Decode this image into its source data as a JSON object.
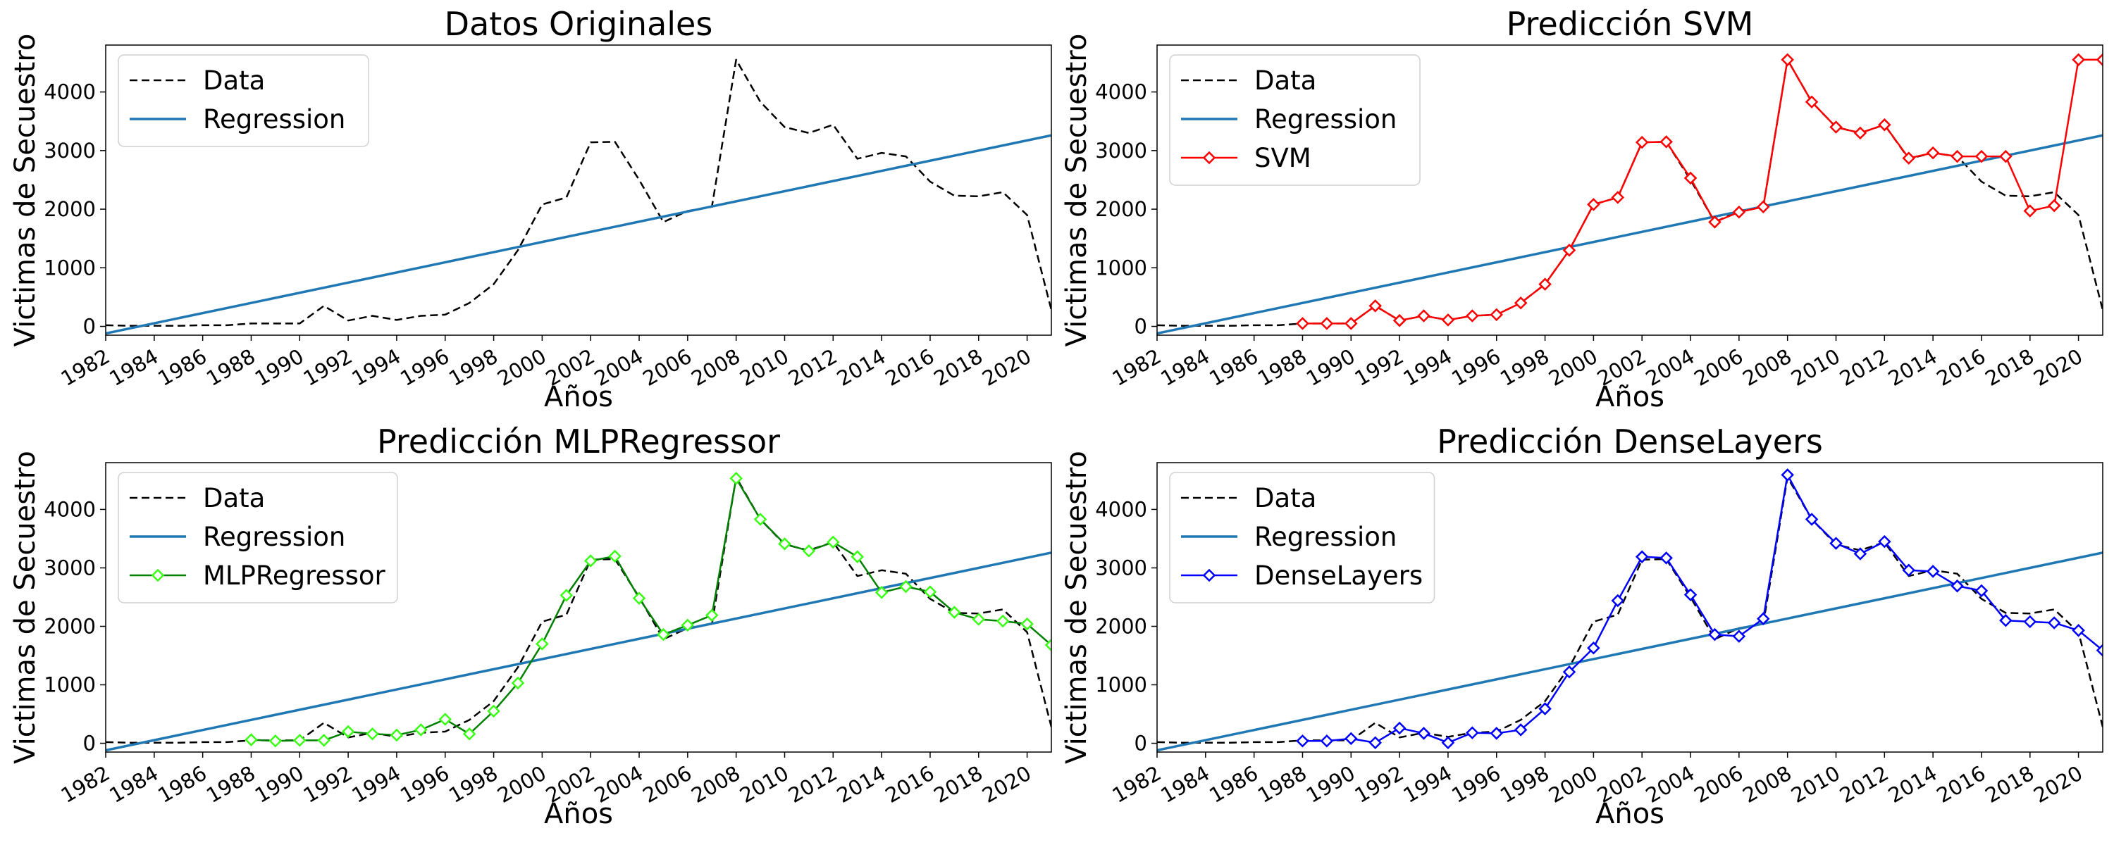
{
  "chart_data": [
    {
      "type": "line",
      "title": "Datos Originales",
      "xlabel": "Años",
      "ylabel": "Victimas de Secuestro",
      "xlim": [
        1982,
        2021
      ],
      "ylim": [
        -150,
        4800
      ],
      "xticks": [
        1982,
        1984,
        1986,
        1988,
        1990,
        1992,
        1994,
        1996,
        1998,
        2000,
        2002,
        2004,
        2006,
        2008,
        2010,
        2012,
        2014,
        2016,
        2018,
        2020
      ],
      "yticks": [
        0,
        1000,
        2000,
        3000,
        4000
      ],
      "legend_position": "top-left",
      "legend": [
        "Data",
        "Regression"
      ],
      "series": [
        {
          "name": "Data",
          "style": "dashed",
          "color": "#000000",
          "x": [
            1982,
            1983,
            1984,
            1985,
            1986,
            1987,
            1988,
            1989,
            1990,
            1991,
            1992,
            1993,
            1994,
            1995,
            1996,
            1997,
            1998,
            1999,
            2000,
            2001,
            2002,
            2003,
            2004,
            2005,
            2006,
            2007,
            2008,
            2009,
            2010,
            2011,
            2012,
            2013,
            2014,
            2015,
            2016,
            2017,
            2018,
            2019,
            2020,
            2021
          ],
          "y": [
            20,
            10,
            10,
            10,
            20,
            20,
            50,
            50,
            50,
            350,
            100,
            180,
            110,
            180,
            200,
            400,
            720,
            1300,
            2080,
            2200,
            3140,
            3150,
            2500,
            1780,
            1970,
            2040,
            4550,
            3830,
            3400,
            3300,
            3440,
            2860,
            2960,
            2900,
            2470,
            2230,
            2220,
            2290,
            1900,
            280
          ]
        },
        {
          "name": "Regression",
          "style": "solid",
          "color": "#1f77b4",
          "x": [
            1982,
            2021
          ],
          "y": [
            -120,
            3260
          ]
        }
      ]
    },
    {
      "type": "line",
      "title": "Predicción SVM",
      "xlabel": "Años",
      "ylabel": "Victimas de Secuestro",
      "xlim": [
        1982,
        2021
      ],
      "ylim": [
        -150,
        4800
      ],
      "xticks": [
        1982,
        1984,
        1986,
        1988,
        1990,
        1992,
        1994,
        1996,
        1998,
        2000,
        2002,
        2004,
        2006,
        2008,
        2010,
        2012,
        2014,
        2016,
        2018,
        2020
      ],
      "yticks": [
        0,
        1000,
        2000,
        3000,
        4000
      ],
      "legend_position": "top-left",
      "legend": [
        "Data",
        "Regression",
        "SVM"
      ],
      "series": [
        {
          "name": "Data",
          "style": "dashed",
          "color": "#000000",
          "x": [
            1982,
            1983,
            1984,
            1985,
            1986,
            1987,
            1988,
            1989,
            1990,
            1991,
            1992,
            1993,
            1994,
            1995,
            1996,
            1997,
            1998,
            1999,
            2000,
            2001,
            2002,
            2003,
            2004,
            2005,
            2006,
            2007,
            2008,
            2009,
            2010,
            2011,
            2012,
            2013,
            2014,
            2015,
            2016,
            2017,
            2018,
            2019,
            2020,
            2021
          ],
          "y": [
            20,
            10,
            10,
            10,
            20,
            20,
            50,
            50,
            50,
            350,
            100,
            180,
            110,
            180,
            200,
            400,
            720,
            1300,
            2080,
            2200,
            3140,
            3150,
            2500,
            1780,
            1970,
            2040,
            4550,
            3830,
            3400,
            3300,
            3440,
            2860,
            2960,
            2900,
            2470,
            2230,
            2220,
            2290,
            1900,
            280
          ]
        },
        {
          "name": "Regression",
          "style": "solid",
          "color": "#1f77b4",
          "x": [
            1982,
            2021
          ],
          "y": [
            -120,
            3260
          ]
        },
        {
          "name": "SVM",
          "style": "solid-diamond",
          "color": "#ff0000",
          "x": [
            1988,
            1989,
            1990,
            1991,
            1992,
            1993,
            1994,
            1995,
            1996,
            1997,
            1998,
            1999,
            2000,
            2001,
            2002,
            2003,
            2004,
            2005,
            2006,
            2007,
            2008,
            2009,
            2010,
            2011,
            2012,
            2013,
            2014,
            2015,
            2016,
            2017,
            2018,
            2019,
            2020,
            2021
          ],
          "y": [
            50,
            50,
            50,
            350,
            100,
            180,
            110,
            180,
            200,
            400,
            720,
            1300,
            2080,
            2200,
            3140,
            3150,
            2530,
            1780,
            1950,
            2040,
            4550,
            3830,
            3400,
            3300,
            3440,
            2870,
            2960,
            2900,
            2900,
            2900,
            1970,
            2060,
            4550,
            4550
          ]
        }
      ]
    },
    {
      "type": "line",
      "title": "Predicción MLPRegressor",
      "xlabel": "Años",
      "ylabel": "Victimas de Secuestro",
      "xlim": [
        1982,
        2021
      ],
      "ylim": [
        -150,
        4800
      ],
      "xticks": [
        1982,
        1984,
        1986,
        1988,
        1990,
        1992,
        1994,
        1996,
        1998,
        2000,
        2002,
        2004,
        2006,
        2008,
        2010,
        2012,
        2014,
        2016,
        2018,
        2020
      ],
      "yticks": [
        0,
        1000,
        2000,
        3000,
        4000
      ],
      "legend_position": "top-left",
      "legend": [
        "Data",
        "Regression",
        "MLPRegressor"
      ],
      "series": [
        {
          "name": "Data",
          "style": "dashed",
          "color": "#000000",
          "x": [
            1982,
            1983,
            1984,
            1985,
            1986,
            1987,
            1988,
            1989,
            1990,
            1991,
            1992,
            1993,
            1994,
            1995,
            1996,
            1997,
            1998,
            1999,
            2000,
            2001,
            2002,
            2003,
            2004,
            2005,
            2006,
            2007,
            2008,
            2009,
            2010,
            2011,
            2012,
            2013,
            2014,
            2015,
            2016,
            2017,
            2018,
            2019,
            2020,
            2021
          ],
          "y": [
            20,
            10,
            10,
            10,
            20,
            20,
            50,
            50,
            50,
            350,
            100,
            180,
            110,
            180,
            200,
            400,
            720,
            1300,
            2080,
            2200,
            3140,
            3150,
            2500,
            1780,
            1970,
            2040,
            4550,
            3830,
            3400,
            3300,
            3440,
            2860,
            2960,
            2900,
            2470,
            2230,
            2220,
            2290,
            1900,
            280
          ]
        },
        {
          "name": "Regression",
          "style": "solid",
          "color": "#1f77b4",
          "x": [
            1982,
            2021
          ],
          "y": [
            -120,
            3260
          ]
        },
        {
          "name": "MLPRegressor",
          "style": "solid-diamond",
          "color": "#008000",
          "marker_color": "#39ff14",
          "x": [
            1988,
            1989,
            1990,
            1991,
            1992,
            1993,
            1994,
            1995,
            1996,
            1997,
            1998,
            1999,
            2000,
            2001,
            2002,
            2003,
            2004,
            2005,
            2006,
            2007,
            2008,
            2009,
            2010,
            2011,
            2012,
            2013,
            2014,
            2015,
            2016,
            2017,
            2018,
            2019,
            2020,
            2021
          ],
          "y": [
            60,
            40,
            50,
            50,
            200,
            160,
            140,
            230,
            410,
            160,
            550,
            1030,
            1700,
            2530,
            3120,
            3200,
            2480,
            1860,
            2020,
            2190,
            4530,
            3830,
            3410,
            3290,
            3440,
            3190,
            2580,
            2680,
            2590,
            2240,
            2120,
            2090,
            2040,
            1680
          ]
        }
      ]
    },
    {
      "type": "line",
      "title": "Predicción DenseLayers",
      "xlabel": "Años",
      "ylabel": "Victimas de Secuestro",
      "xlim": [
        1982,
        2021
      ],
      "ylim": [
        -150,
        4800
      ],
      "xticks": [
        1982,
        1984,
        1986,
        1988,
        1990,
        1992,
        1994,
        1996,
        1998,
        2000,
        2002,
        2004,
        2006,
        2008,
        2010,
        2012,
        2014,
        2016,
        2018,
        2020
      ],
      "yticks": [
        0,
        1000,
        2000,
        3000,
        4000
      ],
      "legend_position": "top-left",
      "legend": [
        "Data",
        "Regression",
        "DenseLayers"
      ],
      "series": [
        {
          "name": "Data",
          "style": "dashed",
          "color": "#000000",
          "x": [
            1982,
            1983,
            1984,
            1985,
            1986,
            1987,
            1988,
            1989,
            1990,
            1991,
            1992,
            1993,
            1994,
            1995,
            1996,
            1997,
            1998,
            1999,
            2000,
            2001,
            2002,
            2003,
            2004,
            2005,
            2006,
            2007,
            2008,
            2009,
            2010,
            2011,
            2012,
            2013,
            2014,
            2015,
            2016,
            2017,
            2018,
            2019,
            2020,
            2021
          ],
          "y": [
            20,
            10,
            10,
            10,
            20,
            20,
            50,
            50,
            50,
            350,
            100,
            180,
            110,
            180,
            200,
            400,
            720,
            1300,
            2080,
            2200,
            3140,
            3150,
            2500,
            1780,
            1970,
            2040,
            4550,
            3830,
            3400,
            3300,
            3440,
            2860,
            2960,
            2900,
            2470,
            2230,
            2220,
            2290,
            1900,
            280
          ]
        },
        {
          "name": "Regression",
          "style": "solid",
          "color": "#1f77b4",
          "x": [
            1982,
            2021
          ],
          "y": [
            -120,
            3260
          ]
        },
        {
          "name": "DenseLayers",
          "style": "solid-diamond",
          "color": "#0000ff",
          "x": [
            1988,
            1989,
            1990,
            1991,
            1992,
            1993,
            1994,
            1995,
            1996,
            1997,
            1998,
            1999,
            2000,
            2001,
            2002,
            2003,
            2004,
            2005,
            2006,
            2007,
            2008,
            2009,
            2010,
            2011,
            2012,
            2013,
            2014,
            2015,
            2016,
            2017,
            2018,
            2019,
            2020,
            2021
          ],
          "y": [
            40,
            40,
            80,
            10,
            260,
            170,
            10,
            180,
            170,
            230,
            590,
            1220,
            1630,
            2440,
            3190,
            3170,
            2540,
            1860,
            1830,
            2130,
            4590,
            3830,
            3420,
            3240,
            3450,
            2960,
            2940,
            2690,
            2610,
            2100,
            2080,
            2060,
            1930,
            1590
          ]
        }
      ]
    }
  ]
}
